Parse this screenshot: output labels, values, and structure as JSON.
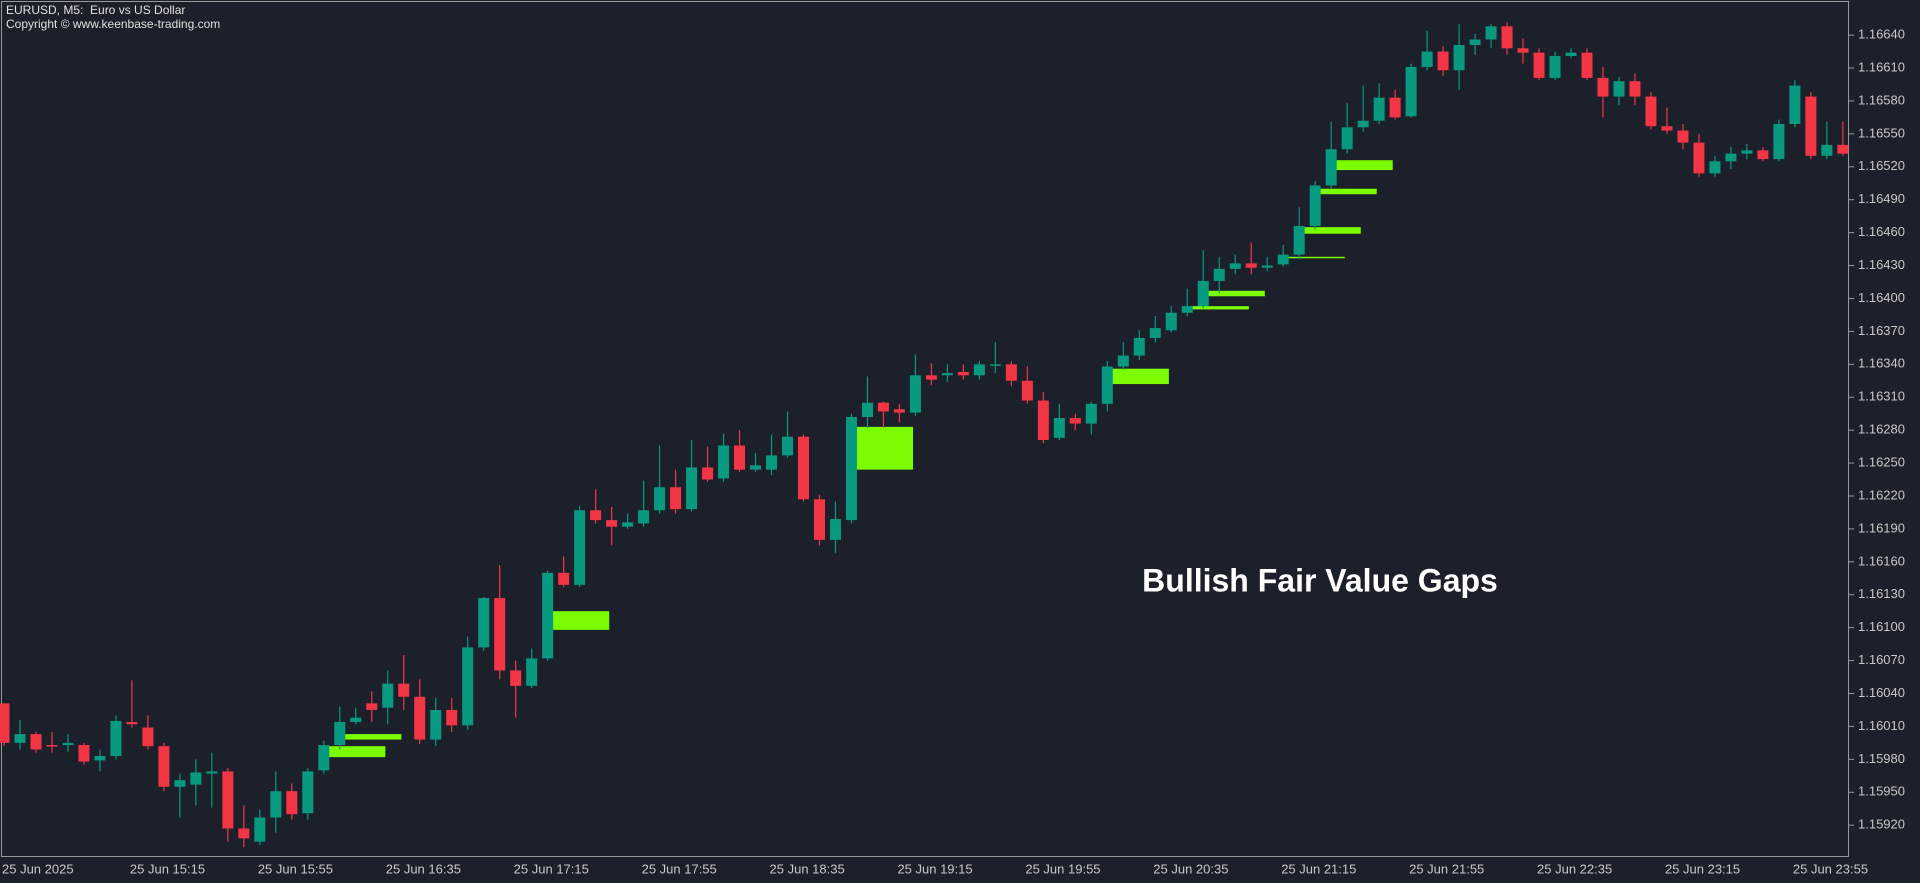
{
  "chart_data": {
    "type": "candlestick",
    "title": "EURUSD, M5:  Euro vs US Dollar",
    "subtitle": "Copyright © www.keenbase-trading.com",
    "annotation": "Bullish Fair Value Gaps",
    "up_color": "#089981",
    "down_color": "#f23645",
    "gap_color": "#7cfc00",
    "categories": [
      "25 Jun 2025",
      null,
      null,
      null,
      null,
      null,
      null,
      null,
      "25 Jun 15:15",
      null,
      null,
      null,
      null,
      null,
      null,
      null,
      "25 Jun 15:55",
      null,
      null,
      null,
      null,
      null,
      null,
      null,
      "25 Jun 16:35",
      null,
      null,
      null,
      null,
      null,
      null,
      null,
      "25 Jun 17:15",
      null,
      null,
      null,
      null,
      null,
      null,
      null,
      "25 Jun 17:55",
      null,
      null,
      null,
      null,
      null,
      null,
      null,
      "25 Jun 18:35",
      null,
      null,
      null,
      null,
      null,
      null,
      null,
      "25 Jun 19:15",
      null,
      null,
      null,
      null,
      null,
      null,
      null,
      "25 Jun 19:55",
      null,
      null,
      null,
      null,
      null,
      null,
      null,
      "25 Jun 20:35",
      null,
      null,
      null,
      null,
      null,
      null,
      null,
      "25 Jun 21:15",
      null,
      null,
      null,
      null,
      null,
      null,
      null,
      "25 Jun 21:55",
      null,
      null,
      null,
      null,
      null,
      null,
      null,
      "25 Jun 22:35",
      null,
      null,
      null,
      null,
      null,
      null,
      null,
      "25 Jun 23:15",
      null,
      null,
      null,
      null,
      null,
      null,
      null,
      "25 Jun 23:55",
      null,
      null,
      null
    ],
    "open": [
      1.16031,
      1.15995,
      1.16003,
      1.15993,
      1.15993,
      1.15993,
      1.15979,
      1.15983,
      1.16014,
      1.16009,
      1.15992,
      1.15955,
      1.15957,
      1.15967,
      1.15969,
      1.15917,
      1.15905,
      1.15927,
      1.15951,
      1.15931,
      1.1597,
      1.15993,
      1.16014,
      1.16031,
      1.16027,
      1.16049,
      1.16037,
      1.15998,
      1.16025,
      1.16011,
      1.16082,
      1.16127,
      1.16061,
      1.16047,
      1.16072,
      1.1615,
      1.16139,
      1.16207,
      1.16198,
      1.16192,
      1.16195,
      1.16207,
      1.16228,
      1.16208,
      1.16246,
      1.16236,
      1.16266,
      1.16244,
      1.16244,
      1.16257,
      1.16274,
      1.16217,
      1.1618,
      1.16198,
      1.16292,
      1.16305,
      1.16299,
      1.16296,
      1.1633,
      1.1633,
      1.16333,
      1.1633,
      1.16339,
      1.1634,
      1.16325,
      1.16307,
      1.16273,
      1.16291,
      1.16286,
      1.16304,
      1.16338,
      1.16348,
      1.16364,
      1.16371,
      1.16387,
      1.16393,
      1.16416,
      1.16427,
      1.16432,
      1.16428,
      1.16431,
      1.1644,
      1.16466,
      1.16503,
      1.16536,
      1.16556,
      1.16562,
      1.16583,
      1.16566,
      1.16611,
      1.16625,
      1.16608,
      1.16631,
      1.16636,
      1.16648,
      1.16628,
      1.16624,
      1.16601,
      1.16621,
      1.16624,
      1.16601,
      1.16584,
      1.16598,
      1.16584,
      1.16557,
      1.16553,
      1.16542,
      1.16514,
      1.16525,
      1.16532,
      1.16535,
      1.16527,
      1.16559,
      1.16584,
      1.1653,
      1.1654
    ],
    "high": [
      1.16031,
      1.16016,
      1.16005,
      1.16005,
      1.16003,
      1.15995,
      1.15989,
      1.1602,
      1.16052,
      1.1602,
      1.15995,
      1.15967,
      1.1598,
      1.15986,
      1.15972,
      1.15938,
      1.15934,
      1.15969,
      1.15958,
      1.15972,
      1.15997,
      1.16028,
      1.16027,
      1.16042,
      1.16061,
      1.16075,
      1.16053,
      1.16036,
      1.16036,
      1.16092,
      1.16128,
      1.16157,
      1.1607,
      1.16081,
      1.16152,
      1.16165,
      1.16211,
      1.16226,
      1.1621,
      1.16204,
      1.16234,
      1.16266,
      1.16244,
      1.16271,
      1.16265,
      1.16277,
      1.1628,
      1.16259,
      1.16276,
      1.16297,
      1.16276,
      1.16221,
      1.16215,
      1.16295,
      1.16329,
      1.16306,
      1.16304,
      1.16349,
      1.16341,
      1.1634,
      1.1634,
      1.16343,
      1.1636,
      1.16343,
      1.16338,
      1.16315,
      1.16304,
      1.16295,
      1.16306,
      1.16343,
      1.1636,
      1.16371,
      1.16384,
      1.16393,
      1.16409,
      1.16444,
      1.16438,
      1.1644,
      1.16451,
      1.16438,
      1.16449,
      1.16483,
      1.16507,
      1.16561,
      1.16578,
      1.16594,
      1.16596,
      1.1659,
      1.16614,
      1.16644,
      1.1663,
      1.1665,
      1.16641,
      1.1665,
      1.16652,
      1.16637,
      1.16628,
      1.16625,
      1.16628,
      1.16628,
      1.16611,
      1.16602,
      1.16605,
      1.16588,
      1.16574,
      1.16559,
      1.1655,
      1.1653,
      1.16538,
      1.16541,
      1.16538,
      1.16563,
      1.16599,
      1.16588,
      1.16561,
      1.16561
    ],
    "low": [
      1.15992,
      1.15989,
      1.15986,
      1.15986,
      1.15987,
      1.15975,
      1.15969,
      1.1598,
      1.16009,
      1.15989,
      1.15951,
      1.15927,
      1.15938,
      1.15936,
      1.15905,
      1.159,
      1.15902,
      1.15913,
      1.15925,
      1.15925,
      1.15967,
      1.15989,
      1.16012,
      1.16014,
      1.16012,
      1.16025,
      1.15994,
      1.15992,
      1.16005,
      1.16007,
      1.16079,
      1.16053,
      1.16018,
      1.16045,
      1.1607,
      1.16137,
      1.16137,
      1.16195,
      1.16175,
      1.1619,
      1.16192,
      1.16204,
      1.16204,
      1.16206,
      1.16233,
      1.16233,
      1.16242,
      1.16242,
      1.16239,
      1.16255,
      1.16215,
      1.16175,
      1.16168,
      1.16195,
      1.16282,
      1.16282,
      1.16287,
      1.16293,
      1.16321,
      1.16324,
      1.16326,
      1.16326,
      1.16332,
      1.1632,
      1.16304,
      1.16268,
      1.16271,
      1.1628,
      1.16276,
      1.16297,
      1.16335,
      1.16344,
      1.1636,
      1.16369,
      1.16384,
      1.16391,
      1.16405,
      1.16422,
      1.16422,
      1.16425,
      1.16429,
      1.16436,
      1.16463,
      1.165,
      1.16532,
      1.16552,
      1.16559,
      1.16563,
      1.16565,
      1.16608,
      1.16603,
      1.1659,
      1.16622,
      1.16628,
      1.16622,
      1.16614,
      1.16599,
      1.16599,
      1.16619,
      1.16599,
      1.16565,
      1.16576,
      1.16576,
      1.16554,
      1.1655,
      1.16536,
      1.16511,
      1.16511,
      1.16518,
      1.16527,
      1.16525,
      1.16525,
      1.16556,
      1.16527,
      1.16527,
      1.1653
    ],
    "close": [
      1.15995,
      1.16003,
      1.15989,
      1.15992,
      1.15995,
      1.15978,
      1.15983,
      1.16015,
      1.16012,
      1.15992,
      1.15955,
      1.15961,
      1.15968,
      1.15969,
      1.15917,
      1.15908,
      1.15927,
      1.15951,
      1.1593,
      1.15969,
      1.15993,
      1.16014,
      1.16018,
      1.16025,
      1.16049,
      1.16037,
      1.15998,
      1.16025,
      1.16011,
      1.16082,
      1.16127,
      1.16061,
      1.16047,
      1.16072,
      1.1615,
      1.16139,
      1.16207,
      1.16198,
      1.16192,
      1.16196,
      1.16207,
      1.16228,
      1.16208,
      1.16246,
      1.16235,
      1.16266,
      1.16244,
      1.16248,
      1.16257,
      1.16274,
      1.16217,
      1.1618,
      1.16199,
      1.16292,
      1.16305,
      1.16297,
      1.16296,
      1.1633,
      1.16326,
      1.16332,
      1.1633,
      1.1634,
      1.1634,
      1.16325,
      1.16307,
      1.16271,
      1.16291,
      1.16286,
      1.16304,
      1.16338,
      1.16348,
      1.16364,
      1.16373,
      1.16387,
      1.16393,
      1.16416,
      1.16427,
      1.16432,
      1.16428,
      1.1643,
      1.1644,
      1.16466,
      1.16503,
      1.16536,
      1.16556,
      1.16562,
      1.16583,
      1.16565,
      1.16611,
      1.16625,
      1.16608,
      1.16631,
      1.16636,
      1.16648,
      1.16628,
      1.16624,
      1.16601,
      1.16621,
      1.16624,
      1.16601,
      1.16584,
      1.16598,
      1.16584,
      1.16557,
      1.16553,
      1.16542,
      1.16514,
      1.16525,
      1.16532,
      1.16535,
      1.16527,
      1.16559,
      1.16594,
      1.1653,
      1.1654,
      1.16532
    ],
    "gaps": [
      {
        "index": 20,
        "low": 1.15982,
        "high": 1.15992
      },
      {
        "index": 21,
        "low": 1.15998,
        "high": 1.16003
      },
      {
        "index": 34,
        "low": 1.16098,
        "high": 1.16115
      },
      {
        "index": 53,
        "low": 1.16244,
        "high": 1.16283
      },
      {
        "index": 69,
        "low": 1.16322,
        "high": 1.16336
      },
      {
        "index": 74,
        "low": 1.1639,
        "high": 1.16393
      },
      {
        "index": 75,
        "low": 1.16402,
        "high": 1.16407
      },
      {
        "index": 80,
        "low": 1.16437,
        "high": 1.16438
      },
      {
        "index": 81,
        "low": 1.16459,
        "high": 1.16465
      },
      {
        "index": 82,
        "low": 1.16495,
        "high": 1.165
      },
      {
        "index": 83,
        "low": 1.16517,
        "high": 1.16526
      }
    ],
    "ylim": [
      1.15891,
      1.16672
    ],
    "yticks": [
      {
        "value": 1.1664,
        "label": "1.16640"
      },
      {
        "value": 1.1661,
        "label": "1.16610"
      },
      {
        "value": 1.1658,
        "label": "1.16580"
      },
      {
        "value": 1.1655,
        "label": "1.16550"
      },
      {
        "value": 1.1652,
        "label": "1.16520"
      },
      {
        "value": 1.1649,
        "label": "1.16490"
      },
      {
        "value": 1.1646,
        "label": "1.16460"
      },
      {
        "value": 1.1643,
        "label": "1.16430"
      },
      {
        "value": 1.164,
        "label": "1.16400"
      },
      {
        "value": 1.1637,
        "label": "1.16370"
      },
      {
        "value": 1.1634,
        "label": "1.16340"
      },
      {
        "value": 1.1631,
        "label": "1.16310"
      },
      {
        "value": 1.1628,
        "label": "1.16280"
      },
      {
        "value": 1.1625,
        "label": "1.16250"
      },
      {
        "value": 1.1622,
        "label": "1.16220"
      },
      {
        "value": 1.1619,
        "label": "1.16190"
      },
      {
        "value": 1.1616,
        "label": "1.16160"
      },
      {
        "value": 1.1613,
        "label": "1.16130"
      },
      {
        "value": 1.161,
        "label": "1.16100"
      },
      {
        "value": 1.1607,
        "label": "1.16070"
      },
      {
        "value": 1.1604,
        "label": "1.16040"
      },
      {
        "value": 1.1601,
        "label": "1.16010"
      },
      {
        "value": 1.1598,
        "label": "1.15980"
      },
      {
        "value": 1.1595,
        "label": "1.15950"
      },
      {
        "value": 1.1592,
        "label": "1.15920"
      }
    ]
  }
}
